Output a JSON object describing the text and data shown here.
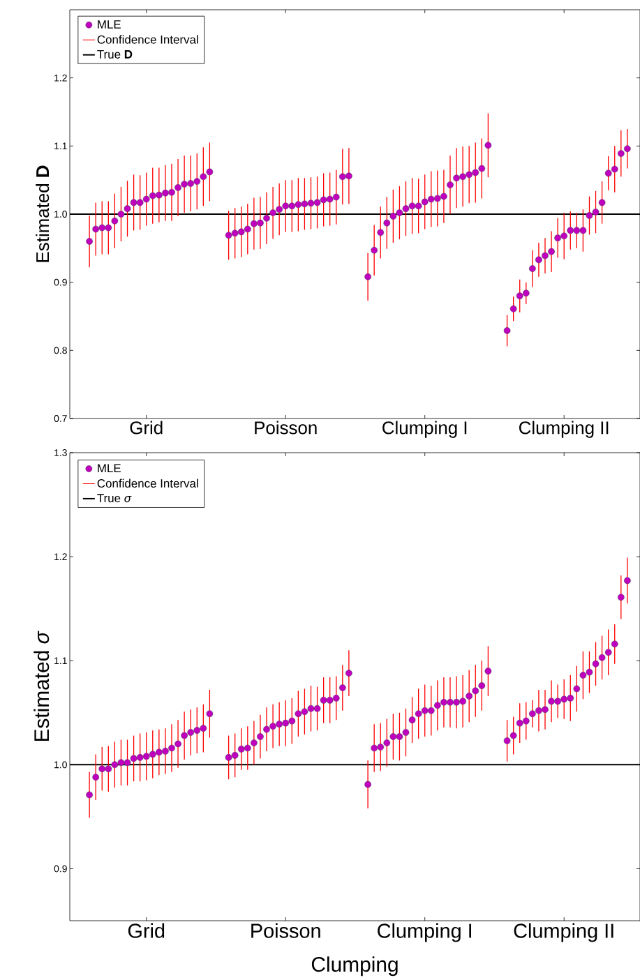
{
  "chart_data": [
    {
      "type": "scatter",
      "ylabel": "Estimated **D**",
      "categories": [
        null,
        null,
        null,
        null,
        null,
        null,
        null,
        null,
        null,
        "Grid",
        null,
        null,
        null,
        null,
        null,
        null,
        null,
        null,
        null,
        null,
        null,
        null,
        null,
        null,
        null,
        null,
        null,
        null,
        null,
        null,
        null,
        "Poisson",
        null,
        null,
        null,
        null,
        null,
        null,
        null,
        null,
        null,
        null,
        null,
        null,
        null,
        null,
        null,
        null,
        null,
        null,
        null,
        null,
        null,
        "Clumping I",
        null,
        null,
        null,
        null,
        null,
        null,
        null,
        null,
        null,
        null,
        null,
        null,
        null,
        null,
        null,
        null,
        null,
        null,
        null,
        null,
        null,
        "Clumping II",
        null,
        null,
        null,
        null,
        null,
        null,
        null,
        null,
        null,
        null
      ],
      "ylim": [
        0.7,
        1.3
      ],
      "yticks": [
        0.7,
        0.8,
        0.9,
        {
          "value": 1.0,
          "label": "1.0"
        },
        1.1,
        1.2
      ],
      "legend": "top left",
      "marker": "circle",
      "annotations": [
        "Confidence Interval"
      ],
      "ref_lines": [
        {
          "axis": "y",
          "value": 1,
          "label": "True **D**",
          "color": "#000000"
        }
      ],
      "series": [
        {
          "name": "MLE",
          "color": "#bf00bf",
          "values": [
            0.96,
            0.978,
            0.98,
            0.98,
            0.99,
            1.0,
            1.008,
            1.017,
            1.017,
            1.022,
            1.027,
            1.028,
            1.031,
            1.032,
            1.039,
            1.044,
            1.045,
            1.048,
            1.055,
            1.062,
            null,
            null,
            0.969,
            0.972,
            0.974,
            0.978,
            0.986,
            0.987,
            0.994,
            1.002,
            1.007,
            1.012,
            1.012,
            1.014,
            1.015,
            1.016,
            1.017,
            1.021,
            1.022,
            1.025,
            1.055,
            1.056,
            null,
            null,
            0.908,
            0.947,
            0.973,
            0.987,
            0.997,
            1.002,
            1.008,
            1.012,
            1.012,
            1.018,
            1.022,
            1.023,
            1.026,
            1.043,
            1.053,
            1.055,
            1.058,
            1.061,
            1.067,
            1.101,
            null,
            null,
            0.829,
            0.861,
            0.88,
            0.884,
            0.92,
            0.933,
            0.939,
            0.945,
            0.965,
            0.968,
            0.976,
            0.976,
            0.976,
            0.998,
            1.003,
            1.017,
            1.06,
            1.066,
            1.089,
            1.096
          ],
          "errors": [
            0.038,
            0.039,
            0.039,
            0.039,
            0.04,
            0.04,
            0.041,
            0.041,
            0.04,
            0.039,
            0.041,
            0.04,
            0.041,
            0.042,
            0.042,
            0.042,
            0.041,
            0.041,
            0.043,
            0.043,
            null,
            null,
            0.036,
            0.037,
            0.037,
            0.037,
            0.038,
            0.038,
            0.038,
            0.038,
            0.038,
            0.038,
            0.038,
            0.039,
            0.038,
            0.038,
            0.038,
            0.039,
            0.039,
            0.04,
            0.041,
            0.041,
            null,
            null,
            0.035,
            0.037,
            0.038,
            0.038,
            0.039,
            0.039,
            0.04,
            0.041,
            0.04,
            0.04,
            0.041,
            0.041,
            0.039,
            0.043,
            0.044,
            0.044,
            0.042,
            0.044,
            0.044,
            0.047,
            null,
            null,
            0.023,
            0.018,
            0.024,
            0.016,
            0.027,
            0.025,
            0.026,
            0.03,
            0.029,
            0.034,
            0.028,
            0.026,
            0.031,
            0.028,
            0.031,
            0.031,
            0.025,
            0.034,
            0.034,
            0.029
          ]
        }
      ]
    },
    {
      "type": "scatter",
      "ylabel": "Estimated *σ*",
      "xlabel": "Clumping",
      "categories": [
        null,
        null,
        null,
        null,
        null,
        null,
        null,
        null,
        null,
        "Grid",
        null,
        null,
        null,
        null,
        null,
        null,
        null,
        null,
        null,
        null,
        null,
        null,
        null,
        null,
        null,
        null,
        null,
        null,
        null,
        null,
        null,
        "Poisson",
        null,
        null,
        null,
        null,
        null,
        null,
        null,
        null,
        null,
        null,
        null,
        null,
        null,
        null,
        null,
        null,
        null,
        null,
        null,
        null,
        null,
        "Clumping I",
        null,
        null,
        null,
        null,
        null,
        null,
        null,
        null,
        null,
        null,
        null,
        null,
        null,
        null,
        null,
        null,
        null,
        null,
        null,
        null,
        null,
        "Clumping II",
        null,
        null,
        null,
        null,
        null,
        null,
        null,
        null,
        null,
        null
      ],
      "ylim": [
        0.85,
        1.3
      ],
      "yticks": [
        0.9,
        {
          "value": 1.0,
          "label": "1.0"
        },
        1.1,
        1.2,
        1.3
      ],
      "legend": "top left",
      "marker": "circle",
      "annotations": [
        "Confidence Interval"
      ],
      "ref_lines": [
        {
          "axis": "y",
          "value": 1,
          "label": "True *σ*",
          "color": "#000000"
        }
      ],
      "series": [
        {
          "name": "MLE",
          "color": "#bf00bf",
          "values": [
            0.971,
            0.988,
            0.996,
            0.996,
            1.0,
            1.002,
            1.002,
            1.006,
            1.007,
            1.008,
            1.01,
            1.012,
            1.013,
            1.016,
            1.02,
            1.028,
            1.031,
            1.033,
            1.035,
            1.049,
            null,
            null,
            1.007,
            1.009,
            1.015,
            1.016,
            1.021,
            1.027,
            1.034,
            1.037,
            1.039,
            1.04,
            1.042,
            1.049,
            1.051,
            1.054,
            1.054,
            1.062,
            1.062,
            1.064,
            1.074,
            1.088,
            null,
            null,
            0.981,
            1.016,
            1.017,
            1.021,
            1.027,
            1.027,
            1.031,
            1.043,
            1.049,
            1.052,
            1.052,
            1.057,
            1.06,
            1.06,
            1.06,
            1.061,
            1.066,
            1.071,
            1.076,
            1.09,
            null,
            null,
            1.023,
            1.028,
            1.04,
            1.042,
            1.049,
            1.052,
            1.053,
            1.061,
            1.061,
            1.063,
            1.064,
            1.073,
            1.086,
            1.089,
            1.097,
            1.103,
            1.108,
            1.116,
            1.161,
            1.177
          ],
          "errors": [
            0.022,
            0.022,
            0.021,
            0.022,
            0.022,
            0.022,
            0.022,
            0.022,
            0.023,
            0.023,
            0.023,
            0.022,
            0.022,
            0.023,
            0.023,
            0.023,
            0.022,
            0.022,
            0.023,
            0.023,
            null,
            null,
            0.021,
            0.021,
            0.02,
            0.021,
            0.021,
            0.021,
            0.021,
            0.021,
            0.021,
            0.022,
            0.022,
            0.022,
            0.022,
            0.022,
            0.021,
            0.022,
            0.022,
            0.021,
            0.022,
            0.022,
            null,
            null,
            0.023,
            0.023,
            0.023,
            0.023,
            0.022,
            0.023,
            0.023,
            0.022,
            0.024,
            0.025,
            0.024,
            0.024,
            0.024,
            0.024,
            0.025,
            0.025,
            0.025,
            0.025,
            0.024,
            0.024,
            null,
            null,
            0.02,
            0.018,
            0.019,
            0.018,
            0.013,
            0.02,
            0.019,
            0.02,
            0.016,
            0.019,
            0.022,
            0.022,
            0.023,
            0.02,
            0.021,
            0.021,
            0.022,
            0.019,
            0.021,
            0.022
          ]
        }
      ]
    }
  ]
}
